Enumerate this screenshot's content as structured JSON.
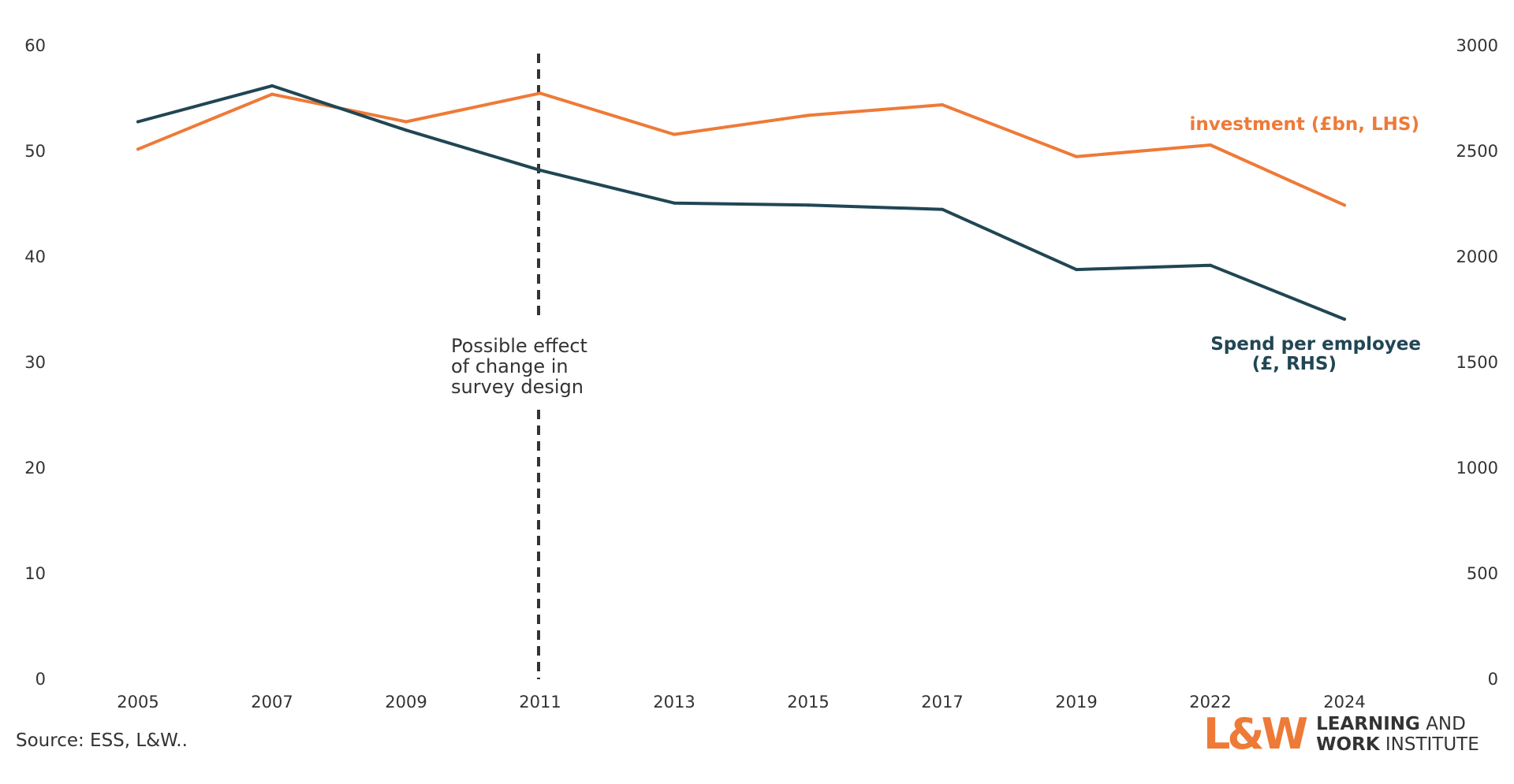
{
  "chart_data": {
    "type": "line",
    "categories": [
      "2005",
      "2007",
      "2009",
      "2011",
      "2013",
      "2015",
      "2017",
      "2019",
      "2022",
      "2024"
    ],
    "series": [
      {
        "name": "investment (£bn, LHS)",
        "axis": "left",
        "color": "#ee7a37",
        "values": [
          50.2,
          55.4,
          52.8,
          55.5,
          51.6,
          53.4,
          54.4,
          49.5,
          50.6,
          44.9
        ]
      },
      {
        "name": "Spend per employee (£, RHS)",
        "label_lines": [
          "Spend per employee",
          "(£, RHS)"
        ],
        "axis": "right",
        "color": "#214654",
        "values": [
          2640,
          2810,
          2600,
          2410,
          2255,
          2245,
          2225,
          1940,
          1960,
          1705
        ]
      }
    ],
    "y_left": {
      "lim": [
        0,
        60
      ],
      "ticks": [
        "0",
        "10",
        "20",
        "30",
        "40",
        "50",
        "60"
      ]
    },
    "y_right": {
      "lim": [
        0,
        3000
      ],
      "ticks": [
        "0",
        "500",
        "1000",
        "1500",
        "2000",
        "2500",
        "3000"
      ]
    },
    "annotation": {
      "at_category": "2011",
      "lines": [
        "Possible effect",
        "of change in",
        "survey design"
      ]
    },
    "grid": false,
    "legend": "none"
  },
  "source": "Source: ESS, L&W..",
  "logo": {
    "mark": "L&W",
    "line1_bold": "LEARNING",
    "line1_rest": " AND",
    "line2_bold": "WORK",
    "line2_rest": " INSTITUTE",
    "color": "#ee7a37"
  }
}
